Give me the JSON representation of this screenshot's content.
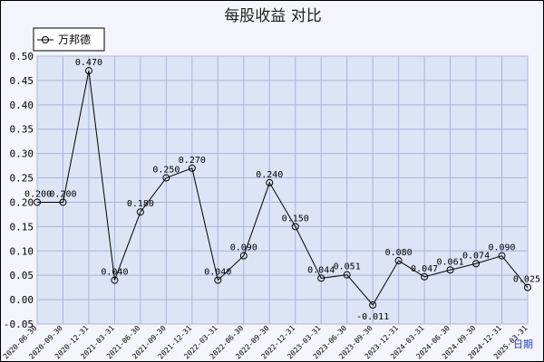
{
  "chart_data": {
    "type": "line",
    "title": "每股收益  对比",
    "xlabel": "日期",
    "ylabel": "",
    "ylim": [
      -0.05,
      0.5
    ],
    "yticks": [
      "-0.05",
      "0.00",
      "0.05",
      "0.10",
      "0.15",
      "0.20",
      "0.25",
      "0.30",
      "0.35",
      "0.40",
      "0.45",
      "0.50"
    ],
    "grid": true,
    "legend_position": "top-left",
    "categories": [
      "2020-06-30",
      "2020-09-30",
      "2020-12-31",
      "2021-03-31",
      "2021-06-30",
      "2021-09-30",
      "2021-12-31",
      "2022-03-31",
      "2022-06-30",
      "2022-09-30",
      "2022-12-31",
      "2023-03-31",
      "2023-06-30",
      "2023-09-30",
      "2023-12-31",
      "2024-03-31",
      "2024-06-30",
      "2024-09-30",
      "2024-12-31",
      "2025-03-31"
    ],
    "series": [
      {
        "name": "万邦德",
        "color": "#000000",
        "values": [
          0.2,
          0.2,
          0.47,
          0.04,
          0.18,
          0.25,
          0.27,
          0.04,
          0.09,
          0.24,
          0.15,
          0.044,
          0.051,
          -0.011,
          0.08,
          0.047,
          0.061,
          0.074,
          0.09,
          0.025
        ],
        "labels": [
          "0.200",
          "0.200",
          "0.470",
          "0.040",
          "0.180",
          "0.250",
          "0.270",
          "0.040",
          "0.090",
          "0.240",
          "0.150",
          "0.044",
          "0.051",
          "-0.011",
          "0.080",
          "0.047",
          "0.061",
          "0.074",
          "0.090",
          "0.025"
        ]
      }
    ]
  }
}
